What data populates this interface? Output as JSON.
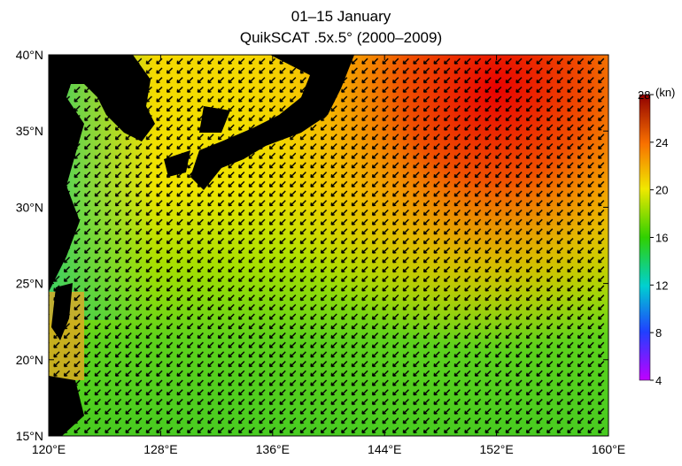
{
  "title": "01–15 January",
  "subtitle": "QuikSCAT .5x.5° (2000–2009)",
  "map": {
    "xlim": [
      120,
      160
    ],
    "ylim": [
      15,
      40
    ],
    "xticks": [
      {
        "value": 120,
        "label": "120°E"
      },
      {
        "value": 128,
        "label": "128°E"
      },
      {
        "value": 136,
        "label": "136°E"
      },
      {
        "value": 144,
        "label": "144°E"
      },
      {
        "value": 152,
        "label": "152°E"
      },
      {
        "value": 160,
        "label": "160°E"
      }
    ],
    "yticks": [
      {
        "value": 15,
        "label": "15°N"
      },
      {
        "value": 20,
        "label": "20°N"
      },
      {
        "value": 25,
        "label": "25°N"
      },
      {
        "value": 30,
        "label": "30°N"
      },
      {
        "value": 35,
        "label": "35°N"
      },
      {
        "value": 40,
        "label": "40°N"
      }
    ]
  },
  "colorbar": {
    "label": "(kn)",
    "range": [
      4,
      28
    ],
    "ticks": [
      4,
      8,
      12,
      16,
      20,
      24,
      28
    ]
  }
}
